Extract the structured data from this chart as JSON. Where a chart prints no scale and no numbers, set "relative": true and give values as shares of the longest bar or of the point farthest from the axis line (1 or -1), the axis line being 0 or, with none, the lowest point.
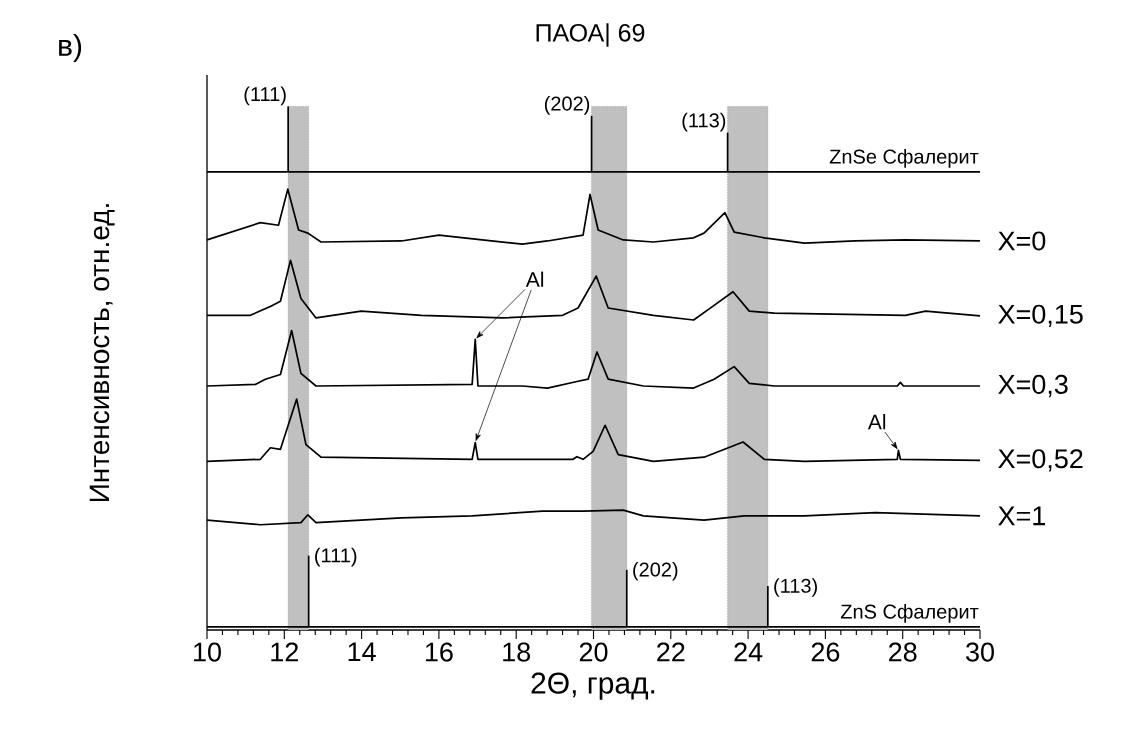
{
  "chart_data": {
    "type": "line",
    "title": "ПАОА| 69",
    "xlabel": "2Θ, град.",
    "ylabel": "Интенсивность, отн.ед.",
    "relative": true,
    "tick_labels": "x",
    "xlim": [
      10,
      30
    ],
    "xticks": [
      10,
      12,
      14,
      16,
      18,
      20,
      22,
      24,
      26,
      28,
      30
    ],
    "bands": [
      {
        "axis": "x",
        "from": 12.1,
        "to": 12.63,
        "color": "#c0c0c0"
      },
      {
        "axis": "x",
        "from": 19.95,
        "to": 20.86,
        "color": "#c0c0c0"
      },
      {
        "axis": "x",
        "from": 23.47,
        "to": 24.51,
        "color": "#c0c0c0"
      }
    ],
    "series": [
      {
        "name": "ZnSe Сфалерит",
        "color": "#000000",
        "x": [
          10,
          30
        ],
        "values": [
          0.875,
          0.875
        ]
      },
      {
        "color": "#000000",
        "x": [
          12.1,
          12.1
        ],
        "values": [
          0.875,
          1.0
        ]
      },
      {
        "color": "#000000",
        "x": [
          19.95,
          19.95
        ],
        "values": [
          0.875,
          0.982
        ]
      },
      {
        "color": "#000000",
        "x": [
          23.47,
          23.47
        ],
        "values": [
          0.875,
          0.95
        ]
      },
      {
        "name": "X=0",
        "color": "#000000",
        "x": [
          10,
          11.38,
          11.85,
          12.09,
          12.37,
          12.61,
          12.95,
          15.03,
          16.0,
          17.12,
          18.16,
          18.81,
          19.73,
          19.91,
          20.12,
          20.77,
          21.55,
          22.59,
          22.86,
          23.4,
          23.64,
          24.42,
          25.46,
          26.77,
          28.07,
          30
        ],
        "values": [
          0.745,
          0.778,
          0.773,
          0.842,
          0.764,
          0.758,
          0.741,
          0.743,
          0.754,
          0.745,
          0.737,
          0.743,
          0.754,
          0.832,
          0.764,
          0.745,
          0.741,
          0.749,
          0.758,
          0.797,
          0.76,
          0.749,
          0.739,
          0.743,
          0.745,
          0.743
        ]
      },
      {
        "name": "X=0,15",
        "color": "#000000",
        "x": [
          10,
          11.12,
          11.43,
          11.64,
          11.9,
          12.16,
          12.43,
          12.82,
          13.99,
          15.55,
          17.64,
          19.2,
          19.6,
          20.07,
          20.38,
          21.55,
          22.59,
          23.12,
          23.61,
          24.03,
          24.68,
          28.07,
          28.59,
          30
        ],
        "values": [
          0.601,
          0.601,
          0.611,
          0.618,
          0.628,
          0.706,
          0.633,
          0.596,
          0.609,
          0.601,
          0.596,
          0.601,
          0.615,
          0.676,
          0.615,
          0.601,
          0.592,
          0.62,
          0.646,
          0.609,
          0.605,
          0.601,
          0.609,
          0.6
        ]
      },
      {
        "name": "X=0,3",
        "color": "#000000",
        "x": [
          10,
          11.25,
          11.51,
          11.9,
          12.19,
          12.43,
          12.82,
          16.86,
          16.94,
          17.01,
          18.16,
          18.81,
          19.6,
          19.86,
          20.09,
          20.38,
          21.29,
          22.59,
          23.12,
          23.64,
          24.03,
          24.68,
          27.86,
          27.94,
          28.02,
          30
        ],
        "values": [
          0.466,
          0.469,
          0.479,
          0.488,
          0.572,
          0.49,
          0.466,
          0.469,
          0.555,
          0.466,
          0.466,
          0.462,
          0.475,
          0.479,
          0.531,
          0.479,
          0.466,
          0.462,
          0.479,
          0.503,
          0.471,
          0.466,
          0.466,
          0.473,
          0.466,
          0.466
        ]
      },
      {
        "name": "X=0,52",
        "color": "#000000",
        "x": [
          10,
          11.38,
          11.64,
          11.9,
          12.32,
          12.56,
          12.95,
          16.86,
          16.94,
          17.01,
          19.47,
          19.57,
          19.73,
          19.99,
          20.3,
          20.64,
          21.55,
          22.86,
          23.87,
          24.42,
          25.46,
          27.86,
          27.89,
          27.94,
          30
        ],
        "values": [
          0.322,
          0.326,
          0.348,
          0.345,
          0.441,
          0.354,
          0.33,
          0.326,
          0.358,
          0.326,
          0.326,
          0.331,
          0.326,
          0.341,
          0.391,
          0.335,
          0.322,
          0.33,
          0.359,
          0.326,
          0.322,
          0.326,
          0.343,
          0.326,
          0.324
        ]
      },
      {
        "name": "X=1",
        "color": "#000000",
        "x": [
          10,
          11.38,
          12.43,
          12.61,
          12.82,
          15.03,
          16.86,
          18.68,
          19.73,
          20.77,
          21.29,
          22.86,
          23.9,
          25.46,
          27.29,
          30
        ],
        "values": [
          0.21,
          0.201,
          0.205,
          0.22,
          0.205,
          0.214,
          0.218,
          0.227,
          0.227,
          0.229,
          0.218,
          0.21,
          0.218,
          0.218,
          0.224,
          0.218
        ]
      },
      {
        "name": "ZnS Сфалерит",
        "color": "#000000",
        "x": [
          10,
          30
        ],
        "values": [
          0.006,
          0.006
        ]
      },
      {
        "color": "#000000",
        "x": [
          12.63,
          12.63
        ],
        "values": [
          0.006,
          0.142
        ]
      },
      {
        "color": "#000000",
        "x": [
          20.86,
          20.86
        ],
        "values": [
          0.006,
          0.115
        ]
      },
      {
        "color": "#000000",
        "x": [
          24.51,
          24.51
        ],
        "values": [
          0.006,
          0.084
        ]
      }
    ],
    "annotations": [
      "в)",
      {
        "text": "(111)",
        "x": 12.1,
        "y": 1.0
      },
      {
        "text": "(202)",
        "x": 19.95,
        "y": 0.982
      },
      {
        "text": "(113)",
        "x": 23.47,
        "y": 0.95
      },
      {
        "text": "(111)",
        "x": 12.63,
        "y": 0.142
      },
      {
        "text": "(202)",
        "x": 20.86,
        "y": 0.115
      },
      {
        "text": "(113)",
        "x": 24.51,
        "y": 0.084
      },
      {
        "text": "Al",
        "x": 16.94,
        "y": 0.555
      },
      {
        "text": "Al",
        "x": 27.89,
        "y": 0.343
      }
    ]
  }
}
